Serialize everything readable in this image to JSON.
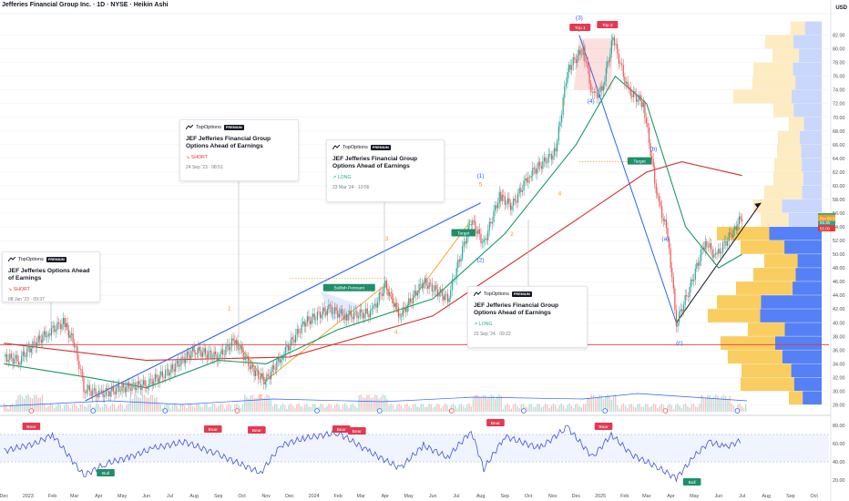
{
  "header": {
    "title": "Jefferies Financial Group Inc. · 1D · NYSE · Heikin Ashi",
    "currency": "USD"
  },
  "colors": {
    "background": "#ffffff",
    "up_candle": "#26a69a",
    "down_candle": "#ef5350",
    "long_ma": "#d32f2f",
    "short_ma": "#1b9a63",
    "trendline": "#2962ff",
    "wave_orange": "#f59c1a",
    "rsi_line": "#3f51e0",
    "vp_up": "#f8c84e",
    "vp_down": "#4d79f5",
    "support": "#e53935"
  },
  "chart_data": [
    {
      "type": "candlestick",
      "title": "Jefferies Financial Group Inc. · 1D · NYSE · Heikin Ashi",
      "x_ticks": [
        "Dec",
        "2023",
        "Feb",
        "Mar",
        "Apr",
        "May",
        "Jun",
        "Jul",
        "Aug",
        "Sep",
        "Oct",
        "Nov",
        "Dec",
        "2024",
        "Feb",
        "Mar",
        "Apr",
        "May",
        "Jun",
        "Jul",
        "Aug",
        "Sep",
        "Oct",
        "Nov",
        "Dec",
        "2025",
        "Feb",
        "Mar",
        "Apr",
        "May",
        "Jun",
        "Jul",
        "Aug",
        "Sep",
        "Oct"
      ],
      "y_ticks": [
        28,
        30,
        32,
        34,
        36,
        38,
        40,
        42,
        44,
        46,
        48,
        50,
        52,
        54,
        56,
        58,
        60,
        62,
        64,
        66,
        68,
        70,
        72,
        74,
        76,
        78,
        80,
        82
      ],
      "ylim": [
        27,
        85
      ],
      "price_path": [
        [
          "2022-12-01",
          35.0
        ],
        [
          "2022-12-20",
          34.5
        ],
        [
          "2023-01-05",
          36.5
        ],
        [
          "2023-01-25",
          38.5
        ],
        [
          "2023-02-15",
          40.0
        ],
        [
          "2023-03-01",
          37.0
        ],
        [
          "2023-03-13",
          30.5
        ],
        [
          "2023-04-01",
          29.5
        ],
        [
          "2023-05-01",
          30.5
        ],
        [
          "2023-06-01",
          31.0
        ],
        [
          "2023-07-01",
          33.0
        ],
        [
          "2023-08-01",
          36.0
        ],
        [
          "2023-09-01",
          35.0
        ],
        [
          "2023-09-22",
          37.5
        ],
        [
          "2023-10-15",
          33.0
        ],
        [
          "2023-10-31",
          31.5
        ],
        [
          "2023-11-20",
          35.0
        ],
        [
          "2023-12-20",
          40.0
        ],
        [
          "2024-01-20",
          42.0
        ],
        [
          "2024-02-10",
          41.0
        ],
        [
          "2024-03-15",
          41.5
        ],
        [
          "2024-04-01",
          45.5
        ],
        [
          "2024-04-20",
          41.0
        ],
        [
          "2024-05-20",
          46.0
        ],
        [
          "2024-06-20",
          43.5
        ],
        [
          "2024-07-20",
          55.0
        ],
        [
          "2024-08-05",
          51.5
        ],
        [
          "2024-08-25",
          58.5
        ],
        [
          "2024-09-10",
          57.0
        ],
        [
          "2024-10-01",
          61.5
        ],
        [
          "2024-11-05",
          65.0
        ],
        [
          "2024-11-20",
          77.0
        ],
        [
          "2024-12-10",
          80.0
        ],
        [
          "2024-12-22",
          73.0
        ],
        [
          "2025-01-03",
          74.0
        ],
        [
          "2025-01-17",
          81.5
        ],
        [
          "2025-02-05",
          74.0
        ],
        [
          "2025-02-25",
          72.0
        ],
        [
          "2025-03-15",
          58.0
        ],
        [
          "2025-03-28",
          53.0
        ],
        [
          "2025-04-08",
          40.0
        ],
        [
          "2025-04-25",
          45.0
        ],
        [
          "2025-05-15",
          52.0
        ],
        [
          "2025-05-28",
          49.5
        ],
        [
          "2025-06-20",
          53.5
        ],
        [
          "2025-07-01",
          55.5
        ]
      ],
      "series": [
        {
          "name": "",
          "kind": "moving-average-long",
          "values": [
            [
              "2022-12-01",
              37.0
            ],
            [
              "2023-06-01",
              34.5
            ],
            [
              "2023-12-01",
              35.0
            ],
            [
              "2024-06-01",
              41.0
            ],
            [
              "2024-12-01",
              55.0
            ],
            [
              "2025-03-01",
              62.0
            ],
            [
              "2025-04-15",
              63.5
            ],
            [
              "2025-07-01",
              61.5
            ]
          ]
        },
        {
          "name": "",
          "kind": "moving-average-short",
          "values": [
            [
              "2022-12-01",
              34.0
            ],
            [
              "2023-03-20",
              32.0
            ],
            [
              "2023-06-01",
              30.5
            ],
            [
              "2023-09-01",
              34.5
            ],
            [
              "2023-11-01",
              34.0
            ],
            [
              "2024-02-01",
              39.0
            ],
            [
              "2024-06-01",
              43.5
            ],
            [
              "2024-09-01",
              53.0
            ],
            [
              "2024-12-01",
              66.0
            ],
            [
              "2025-01-20",
              76.0
            ],
            [
              "2025-03-01",
              72.0
            ],
            [
              "2025-04-20",
              54.0
            ],
            [
              "2025-06-01",
              48.0
            ],
            [
              "2025-07-01",
              50.0
            ]
          ]
        }
      ],
      "annotations": [
        {
          "text": "(3)",
          "date": "2024-12-05",
          "price": 84.3,
          "color": "#2962ff"
        },
        {
          "text": "(5)",
          "date": "2025-01-07",
          "price": 83.3,
          "color": "#2962ff"
        },
        {
          "text": "5",
          "date": "2024-12-05",
          "price": 82.5,
          "color": "#f59c1a"
        },
        {
          "text": "(1)",
          "date": "2024-08-01",
          "price": 61.2,
          "color": "#2962ff"
        },
        {
          "text": "5",
          "date": "2024-08-01",
          "price": 59.9,
          "color": "#f59c1a"
        },
        {
          "text": "(2)",
          "date": "2024-08-01",
          "price": 48.9,
          "color": "#2962ff"
        },
        {
          "text": "(4)",
          "date": "2024-12-20",
          "price": 72.1,
          "color": "#2962ff"
        },
        {
          "text": "(b)",
          "date": "2025-03-10",
          "price": 65.1,
          "color": "#2962ff"
        },
        {
          "text": "(a)",
          "date": "2025-03-25",
          "price": 52.0,
          "color": "#2962ff"
        },
        {
          "text": "(c)",
          "date": "2025-04-12",
          "price": 36.8,
          "color": "#2962ff"
        },
        {
          "text": "1",
          "date": "2023-09-15",
          "price": 41.8,
          "color": "#f59c1a"
        },
        {
          "text": "2",
          "date": "2023-10-25",
          "price": 28.9,
          "color": "#f59c1a"
        },
        {
          "text": "3",
          "date": "2024-04-03",
          "price": 52.0,
          "color": "#f59c1a"
        },
        {
          "text": "4",
          "date": "2024-04-15",
          "price": 38.4,
          "color": "#f59c1a"
        },
        {
          "text": "1",
          "date": "2024-10-01",
          "price": 60.6,
          "color": "#f59c1a"
        },
        {
          "text": "2",
          "date": "2024-09-10",
          "price": 52.7,
          "color": "#f59c1a"
        },
        {
          "text": "3",
          "date": "2024-11-15",
          "price": 71.6,
          "color": "#f59c1a"
        },
        {
          "text": "4",
          "date": "2024-11-10",
          "price": 58.6,
          "color": "#f59c1a"
        }
      ],
      "tags": [
        {
          "text": "Top 1",
          "date": "2024-12-06",
          "price": 83.0,
          "color": "#e53950"
        },
        {
          "text": "Top 2",
          "date": "2025-01-10",
          "price": 83.4,
          "color": "#e53950"
        },
        {
          "text": "Bullish Pennant",
          "date": "2024-02-15",
          "price": 45.0,
          "color": "#1e8f68"
        },
        {
          "text": "Target",
          "date": "2024-07-10",
          "price": 53.0,
          "color": "#1e8f68"
        },
        {
          "text": "Target",
          "date": "2025-02-20",
          "price": 63.5,
          "color": "#1e8f68"
        }
      ],
      "price_labels": [
        {
          "text": "JEF 55.53",
          "price": 55.53,
          "color": "#26a69a"
        },
        {
          "text": "55.36",
          "price": 54.7,
          "color": "#26a69a"
        },
        {
          "text": "55.00",
          "price": 53.8,
          "color": "#e53935"
        },
        {
          "text": "Rm 50.57",
          "price": 54.7,
          "color": "#f59c1a"
        }
      ],
      "support_level": 36.8
    },
    {
      "type": "line",
      "title": "",
      "y_ticks": [
        20,
        40,
        60,
        80
      ],
      "ylim": [
        15,
        85
      ],
      "band": [
        40,
        70
      ],
      "series": [
        {
          "name": "",
          "values": [
            [
              "2022-12-01",
              52
            ],
            [
              "2023-01-10",
              60
            ],
            [
              "2023-02-01",
              70
            ],
            [
              "2023-03-13",
              25
            ],
            [
              "2023-04-10",
              38
            ],
            [
              "2023-05-10",
              45
            ],
            [
              "2023-06-10",
              55
            ],
            [
              "2023-07-20",
              62
            ],
            [
              "2023-09-01",
              48
            ],
            [
              "2023-10-25",
              28
            ],
            [
              "2023-11-20",
              58
            ],
            [
              "2023-12-20",
              66
            ],
            [
              "2024-02-01",
              72
            ],
            [
              "2024-03-10",
              52
            ],
            [
              "2024-04-20",
              33
            ],
            [
              "2024-05-20",
              58
            ],
            [
              "2024-06-20",
              45
            ],
            [
              "2024-07-20",
              74
            ],
            [
              "2024-08-05",
              32
            ],
            [
              "2024-09-01",
              68
            ],
            [
              "2024-10-15",
              55
            ],
            [
              "2024-11-20",
              78
            ],
            [
              "2024-12-22",
              45
            ],
            [
              "2025-01-15",
              70
            ],
            [
              "2025-02-10",
              48
            ],
            [
              "2025-03-15",
              34
            ],
            [
              "2025-04-08",
              22
            ],
            [
              "2025-05-01",
              46
            ],
            [
              "2025-05-20",
              62
            ],
            [
              "2025-06-10",
              56
            ],
            [
              "2025-07-01",
              64
            ]
          ]
        }
      ],
      "tags": [
        {
          "text": "Bear",
          "date": "2023-01-05",
          "value": 78,
          "color": "#e53950"
        },
        {
          "text": "Bull",
          "date": "2023-04-10",
          "value": 27,
          "color": "#1e8f68"
        },
        {
          "text": "Bear",
          "date": "2023-08-25",
          "value": 75,
          "color": "#e53950"
        },
        {
          "text": "Bear",
          "date": "2023-10-20",
          "value": 74,
          "color": "#e53950"
        },
        {
          "text": "Bear",
          "date": "2024-02-05",
          "value": 75,
          "color": "#e53950"
        },
        {
          "text": "Bear",
          "date": "2024-02-25",
          "value": 73,
          "color": "#e53950"
        },
        {
          "text": "Bear",
          "date": "2024-08-20",
          "value": 82,
          "color": "#e53950"
        },
        {
          "text": "Bear",
          "date": "2025-01-05",
          "value": 78,
          "color": "#e53950"
        },
        {
          "text": "Bull",
          "date": "2025-04-28",
          "value": 17,
          "color": "#1e8f68"
        }
      ]
    }
  ],
  "idea_cards": [
    {
      "brand": "TopOptions",
      "badge": "PREMIUM",
      "title": "JEF Jefferies  Options Ahead of Earnings",
      "signal": "↘ SHORT",
      "direction": "short",
      "time": "08 Jan '23 · 09:37"
    },
    {
      "brand": "TopOptions",
      "badge": "PREMIUM",
      "title": "JEF Jefferies Financial Group Options Ahead of Earnings",
      "signal": "↘ SHORT",
      "direction": "short",
      "time": "24 Sep '23 · 08:51"
    },
    {
      "brand": "TopOptions",
      "badge": "PREMIUM",
      "title": "JEF Jefferies Financial Group Options Ahead of Earnings",
      "signal": "↗ LONG",
      "direction": "long",
      "time": "23 Mar '24 · 10:56"
    },
    {
      "brand": "TopOptions",
      "badge": "PREMIUM",
      "title": "JEF Jefferies Financial Group Options Ahead of Earnings",
      "signal": "↗ LONG",
      "direction": "long",
      "time": "23 Sep '24 · 09:22"
    }
  ]
}
